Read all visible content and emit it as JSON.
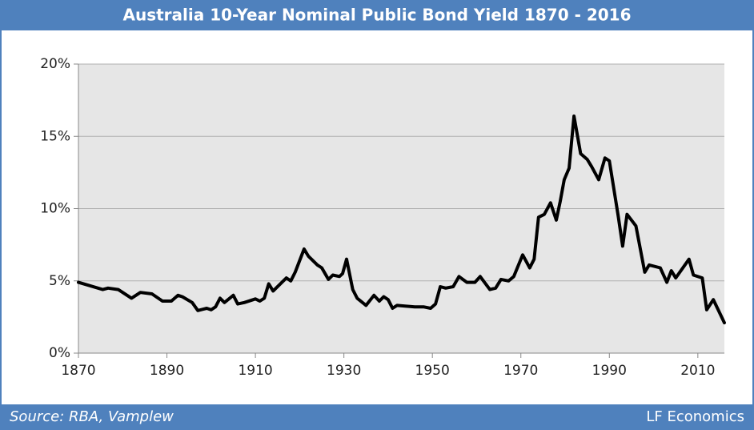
{
  "chart_data": {
    "type": "line",
    "title": "Australia 10-Year Nominal Public Bond Yield 1870 - 2016",
    "source": "Source: RBA, Vamplew",
    "credit": "LF Economics",
    "x": [
      1870,
      1875.5,
      1876.7,
      1879,
      1882,
      1884,
      1886.6,
      1889,
      1891,
      1892.5,
      1893.5,
      1895.7,
      1897,
      1899,
      1900,
      1901,
      1902,
      1903,
      1905,
      1906,
      1907.5,
      1910,
      1911,
      1912,
      1913,
      1914,
      1917,
      1918,
      1919,
      1921,
      1922,
      1924,
      1925,
      1926.5,
      1927.5,
      1929,
      1929.7,
      1930.6,
      1932,
      1933,
      1935,
      1936.8,
      1938,
      1939,
      1940,
      1941,
      1942,
      1946,
      1948,
      1949.6,
      1950.7,
      1951.8,
      1953,
      1954.7,
      1956,
      1957.8,
      1959.6,
      1960.8,
      1963,
      1964.3,
      1965.5,
      1967.2,
      1968.4,
      1970.4,
      1972,
      1973,
      1974,
      1975.3,
      1976.7,
      1978,
      1978.9,
      1979.8,
      1980.9,
      1982,
      1983.5,
      1985,
      1986,
      1987.6,
      1989,
      1990,
      1992,
      1993,
      1994,
      1996,
      1998,
      1999,
      2001.5,
      2003,
      2004,
      2005,
      2008,
      2009,
      2011,
      2012,
      2013.5,
      2016
    ],
    "series": [
      {
        "name": "Yield",
        "color": "#000000",
        "values": [
          4.9,
          4.4,
          4.5,
          4.4,
          3.8,
          4.2,
          4.1,
          3.6,
          3.6,
          4.0,
          3.9,
          3.5,
          2.95,
          3.1,
          3.0,
          3.2,
          3.8,
          3.5,
          4.0,
          3.4,
          3.5,
          3.75,
          3.6,
          3.8,
          4.8,
          4.3,
          5.2,
          5.0,
          5.6,
          7.2,
          6.7,
          6.1,
          5.9,
          5.1,
          5.4,
          5.3,
          5.5,
          6.5,
          4.4,
          3.8,
          3.3,
          4.0,
          3.6,
          3.9,
          3.7,
          3.1,
          3.3,
          3.2,
          3.2,
          3.1,
          3.4,
          4.6,
          4.5,
          4.6,
          5.3,
          4.9,
          4.9,
          5.3,
          4.4,
          4.5,
          5.1,
          5.0,
          5.3,
          6.8,
          5.9,
          6.5,
          9.4,
          9.6,
          10.4,
          9.2,
          10.5,
          12.0,
          12.8,
          16.4,
          13.8,
          13.4,
          12.9,
          12.0,
          13.5,
          13.3,
          9.5,
          7.4,
          9.6,
          8.8,
          5.6,
          6.1,
          5.9,
          4.9,
          5.7,
          5.2,
          6.5,
          5.4,
          5.2,
          3.0,
          3.7,
          2.1
        ]
      }
    ],
    "xlim": [
      1870,
      2016
    ],
    "xticks": [
      1870,
      1890,
      1910,
      1930,
      1950,
      1970,
      1990,
      2010
    ],
    "ylim": [
      0,
      20
    ],
    "yticks": [
      {
        "value": 0,
        "label": "0%"
      },
      {
        "value": 5,
        "label": "5%"
      },
      {
        "value": 10,
        "label": "10%"
      },
      {
        "value": 15,
        "label": "15%"
      },
      {
        "value": 20,
        "label": "20%"
      }
    ],
    "grid": true
  }
}
